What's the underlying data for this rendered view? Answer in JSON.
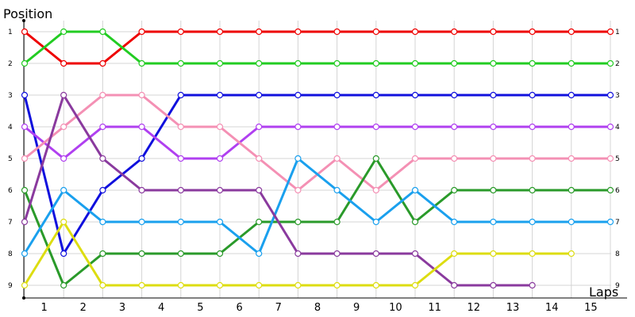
{
  "chart_data": {
    "type": "line",
    "title": "",
    "xlabel": "Laps",
    "ylabel": "Position",
    "x_tick_labels": [
      "1",
      "2",
      "3",
      "4",
      "5",
      "6",
      "7",
      "8",
      "9",
      "10",
      "11",
      "12",
      "13",
      "14",
      "15"
    ],
    "y_tick_labels": [
      "1",
      "2",
      "3",
      "4",
      "5",
      "6",
      "7",
      "8",
      "9"
    ],
    "ylim": [
      1,
      9
    ],
    "y_inverted": true,
    "grid": true,
    "legend": "none",
    "series": [
      {
        "color": "#ee0000",
        "values": [
          1,
          2,
          2,
          1,
          1,
          1,
          1,
          1,
          1,
          1,
          1,
          1,
          1,
          1,
          1,
          1
        ]
      },
      {
        "color": "#22cc22",
        "values": [
          2,
          1,
          1,
          2,
          2,
          2,
          2,
          2,
          2,
          2,
          2,
          2,
          2,
          2,
          2,
          2
        ]
      },
      {
        "color": "#1010dd",
        "values": [
          3,
          8,
          6,
          5,
          3,
          3,
          3,
          3,
          3,
          3,
          3,
          3,
          3,
          3,
          3,
          3
        ]
      },
      {
        "color": "#b040f0",
        "values": [
          4,
          5,
          4,
          4,
          5,
          5,
          4,
          4,
          4,
          4,
          4,
          4,
          4,
          4,
          4,
          4
        ]
      },
      {
        "color": "#f490b4",
        "values": [
          5,
          4,
          3,
          3,
          4,
          4,
          5,
          6,
          5,
          6,
          5,
          5,
          5,
          5,
          5,
          5
        ]
      },
      {
        "color": "#2a9a2a",
        "values": [
          6,
          9,
          8,
          8,
          8,
          8,
          7,
          7,
          7,
          5,
          7,
          6,
          6,
          6,
          6,
          6
        ]
      },
      {
        "color": "#1aa0ee",
        "values": [
          8,
          6,
          7,
          7,
          7,
          7,
          8,
          5,
          6,
          7,
          6,
          7,
          7,
          7,
          7,
          7
        ]
      },
      {
        "color": "#8a3a9e",
        "values": [
          7,
          3,
          5,
          6,
          6,
          6,
          6,
          8,
          8,
          8,
          8,
          9,
          9,
          9,
          null,
          null
        ]
      },
      {
        "color": "#dddd11",
        "values": [
          9,
          7,
          9,
          9,
          9,
          9,
          9,
          9,
          9,
          9,
          9,
          8,
          8,
          8,
          8,
          null
        ]
      }
    ],
    "right_labels": [
      "1",
      "2",
      "3",
      "4",
      "5",
      "6",
      "7",
      "8",
      "9"
    ]
  }
}
